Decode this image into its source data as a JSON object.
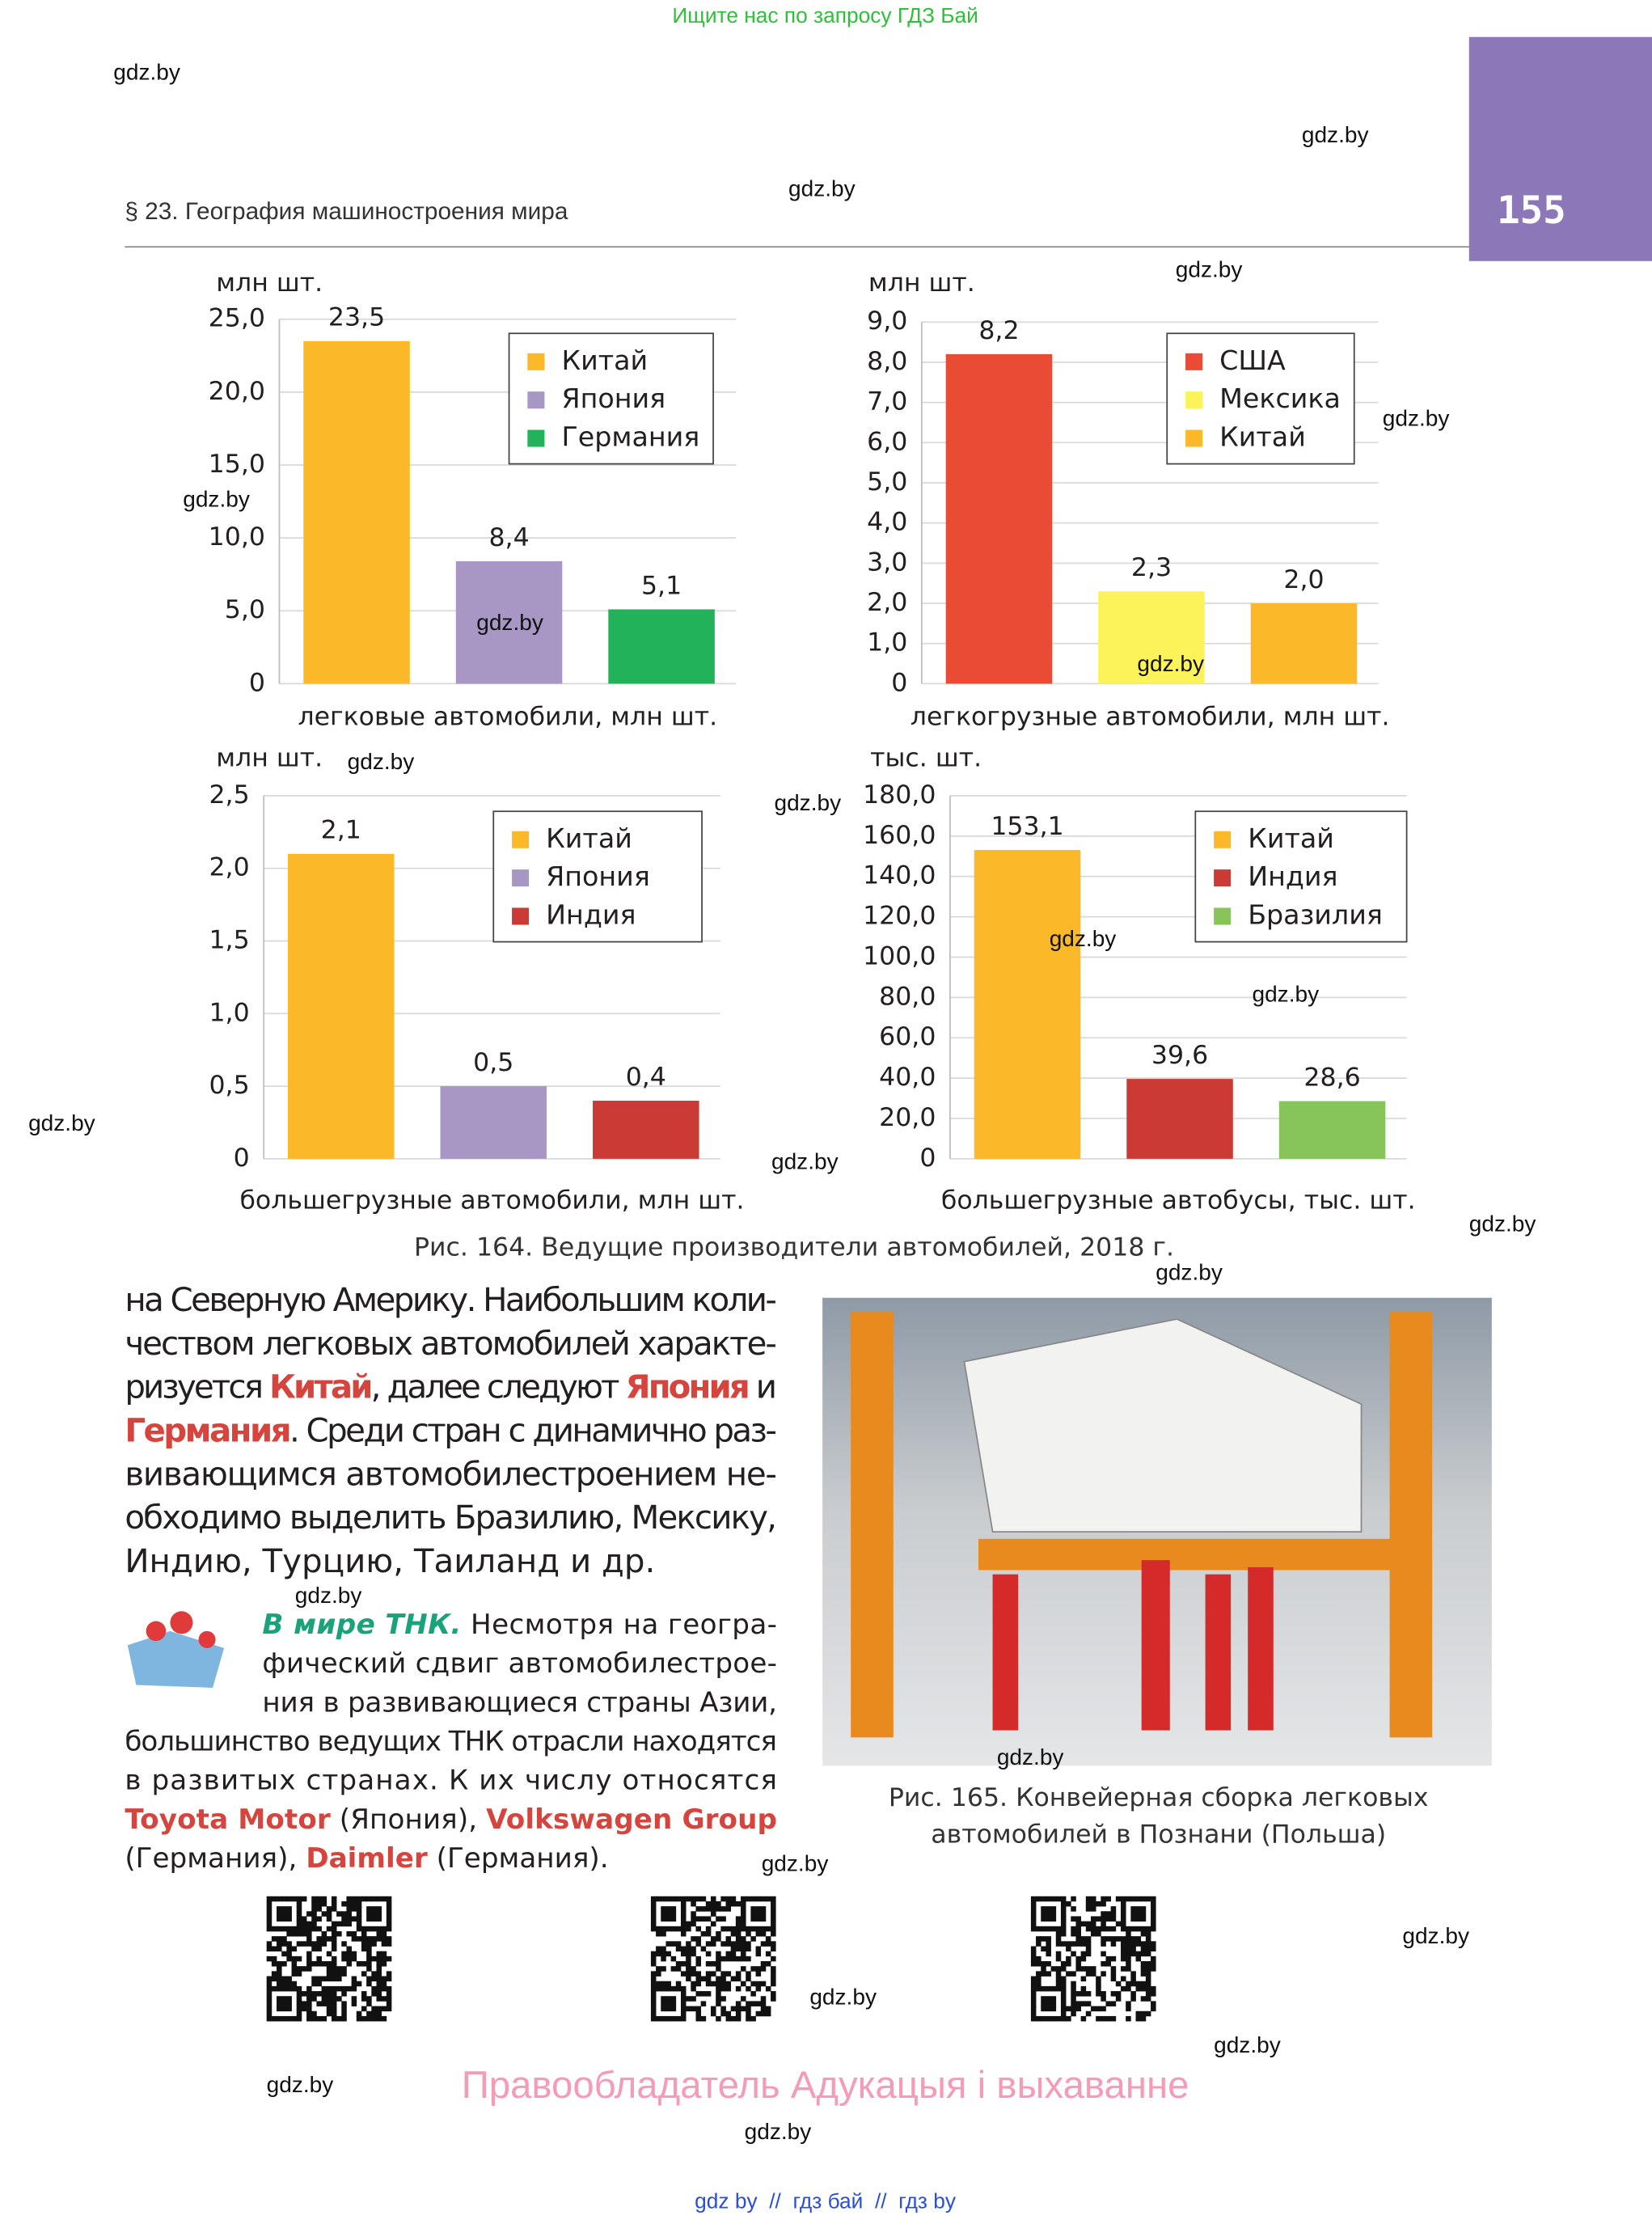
{
  "top_note": "Ищите нас по запросу ГДЗ Бай",
  "header": {
    "section": "§ 23. География машиностроения мира",
    "page_number": "155"
  },
  "chart_data": [
    {
      "type": "bar",
      "unit": "млн шт.",
      "xlabel": "легковые автомобили, млн шт.",
      "categories": [
        "Китай",
        "Япония",
        "Германия"
      ],
      "values": [
        23.5,
        8.4,
        5.1
      ],
      "value_labels": [
        "23,5",
        "8,4",
        "5,1"
      ],
      "colors": [
        "#fbb829",
        "#a897c4",
        "#22b25a"
      ],
      "ylim": [
        0,
        25
      ],
      "yticks": [
        0,
        {
          "value": 5,
          "label": "5,0"
        },
        {
          "value": 10,
          "label": "10,0"
        },
        {
          "value": 15,
          "label": "15,0"
        },
        {
          "value": 20,
          "label": "20,0"
        },
        {
          "value": 25,
          "label": "25,0"
        }
      ],
      "grid": true
    },
    {
      "type": "bar",
      "unit": "млн шт.",
      "xlabel": "легкогрузные автомобили, млн шт.",
      "categories": [
        "США",
        "Мексика",
        "Китай"
      ],
      "values": [
        8.2,
        2.3,
        2.0
      ],
      "value_labels": [
        "8,2",
        "2,3",
        "2,0"
      ],
      "colors": [
        "#ea4b35",
        "#fcf35a",
        "#fbb829"
      ],
      "ylim": [
        0,
        9
      ],
      "yticks": [
        0,
        {
          "value": 1,
          "label": "1,0"
        },
        {
          "value": 2,
          "label": "2,0"
        },
        {
          "value": 3,
          "label": "3,0"
        },
        {
          "value": 4,
          "label": "4,0"
        },
        {
          "value": 5,
          "label": "5,0"
        },
        {
          "value": 6,
          "label": "6,0"
        },
        {
          "value": 7,
          "label": "7,0"
        },
        {
          "value": 8,
          "label": "8,0"
        },
        {
          "value": 9,
          "label": "9,0"
        }
      ],
      "grid": true
    },
    {
      "type": "bar",
      "unit": "млн шт.",
      "xlabel": "большегрузные автомобили, млн шт.",
      "categories": [
        "Китай",
        "Япония",
        "Индия"
      ],
      "values": [
        2.1,
        0.5,
        0.4
      ],
      "value_labels": [
        "2,1",
        "0,5",
        "0,4"
      ],
      "colors": [
        "#fbb829",
        "#a897c4",
        "#cc3a35"
      ],
      "ylim": [
        0,
        2.5
      ],
      "yticks": [
        0,
        {
          "value": 0.5,
          "label": "0,5"
        },
        {
          "value": 1,
          "label": "1,0"
        },
        {
          "value": 1.5,
          "label": "1,5"
        },
        {
          "value": 2,
          "label": "2,0"
        },
        {
          "value": 2.5,
          "label": "2,5"
        }
      ],
      "grid": true
    },
    {
      "type": "bar",
      "unit": "тыс. шт.",
      "xlabel": "большегрузные автобусы, тыс. шт.",
      "categories": [
        "Китай",
        "Индия",
        "Бразилия"
      ],
      "values": [
        153.1,
        39.6,
        28.6
      ],
      "value_labels": [
        "153,1",
        "39,6",
        "28,6"
      ],
      "colors": [
        "#fbb829",
        "#cc3a35",
        "#87c45a"
      ],
      "ylim": [
        0,
        180
      ],
      "yticks": [
        0,
        {
          "value": 20,
          "label": "20,0"
        },
        {
          "value": 40,
          "label": "40,0"
        },
        {
          "value": 60,
          "label": "60,0"
        },
        {
          "value": 80,
          "label": "80,0"
        },
        {
          "value": 100,
          "label": "100,0"
        },
        {
          "value": 120,
          "label": "120,0"
        },
        {
          "value": 140,
          "label": "140,0"
        },
        {
          "value": 160,
          "label": "160,0"
        },
        {
          "value": 180,
          "label": "180,0"
        }
      ],
      "grid": true
    }
  ],
  "figure_164_caption": "Рис. 164. Ведущие производители автомобилей, 2018 г.",
  "body": {
    "lines": [
      [
        {
          "t": "на Северную Америку. Наибольшим коли-"
        }
      ],
      [
        {
          "t": "чеством легковых автомобилей характе-"
        }
      ],
      [
        {
          "t": "ризуется "
        },
        {
          "t": "Китай",
          "b": true
        },
        {
          "t": ", далее следуют "
        },
        {
          "t": "Япония",
          "b": true
        },
        {
          "t": " и"
        }
      ],
      [
        {
          "t": "Германия",
          "b": true
        },
        {
          "t": ". Среди стран с динамично раз-"
        }
      ],
      [
        {
          "t": "вивающимся автомобилестроением не-"
        }
      ],
      [
        {
          "t": "обходимо выделить Бразилию, Мексику,"
        }
      ],
      [
        {
          "t": "Индию, Турцию, Таиланд и др."
        }
      ]
    ]
  },
  "tnk": {
    "lines": [
      [
        {
          "t": "В мире ТНК.",
          "h": true
        },
        {
          "t": " Несмотря на геогра-"
        }
      ],
      [
        {
          "t": "фический сдвиг автомобилестрое-"
        }
      ],
      [
        {
          "t": "ния в развивающиеся страны Азии,"
        }
      ],
      [
        {
          "t": "большинство ведущих ТНК отрасли находятся"
        }
      ],
      [
        {
          "t": "в развитых странах. К их числу относятся"
        }
      ],
      [
        {
          "t": "Toyota Motor",
          "b": true
        },
        {
          "t": " (Япония), "
        },
        {
          "t": "Volkswagen Group",
          "b": true
        }
      ],
      [
        {
          "t": "(Германия), "
        },
        {
          "t": "Daimler",
          "b": true
        },
        {
          "t": " (Германия)."
        }
      ]
    ]
  },
  "figure_165_caption": [
    "Рис. 165. Конвейерная сборка легковых",
    "автомобилей в Познани (Польша)"
  ],
  "rights": "Правообладатель Адукацыя і выхаванне",
  "bottom_note": "gdz by  //  гдз бай  //  гдз by",
  "watermarks": [
    "gdz.by",
    "gdz.by",
    "gdz.by",
    "gdz.by",
    "gdz.by",
    "gdz.by",
    "gdz.by",
    "gdz.by",
    "gdz.by",
    "gdz.by",
    "gdz.by",
    "gdz.by",
    "gdz.by",
    "gdz.by",
    "gdz.by",
    "gdz.by",
    "gdz.by",
    "gdz.by",
    "gdz.by",
    "gdz.by",
    "gdz.by",
    "gdz.by",
    "gdz.by",
    "gdz.by"
  ]
}
